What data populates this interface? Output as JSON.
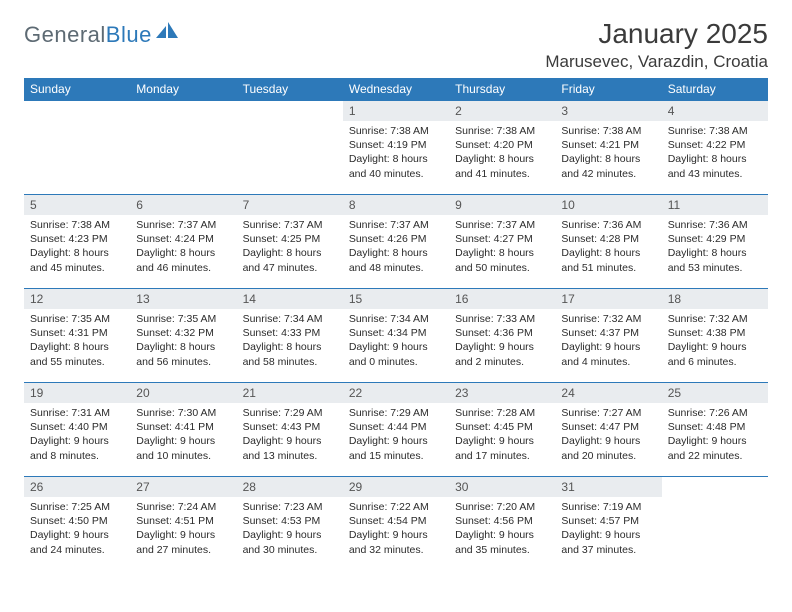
{
  "logo": {
    "word1": "General",
    "word2": "Blue"
  },
  "title": "January 2025",
  "location": "Marusevec, Varazdin, Croatia",
  "colors": {
    "header_bg": "#2d79b9",
    "header_fg": "#ffffff",
    "daynum_bg": "#e9ecef",
    "page_bg": "#ffffff",
    "text": "#2b2b2b",
    "logo_grey": "#5d6a73",
    "logo_blue": "#2d79b9"
  },
  "day_headers": [
    "Sunday",
    "Monday",
    "Tuesday",
    "Wednesday",
    "Thursday",
    "Friday",
    "Saturday"
  ],
  "weeks": [
    [
      null,
      null,
      null,
      {
        "n": "1",
        "sunrise": "7:38 AM",
        "sunset": "4:19 PM",
        "day_h": "8",
        "day_m": "40"
      },
      {
        "n": "2",
        "sunrise": "7:38 AM",
        "sunset": "4:20 PM",
        "day_h": "8",
        "day_m": "41"
      },
      {
        "n": "3",
        "sunrise": "7:38 AM",
        "sunset": "4:21 PM",
        "day_h": "8",
        "day_m": "42"
      },
      {
        "n": "4",
        "sunrise": "7:38 AM",
        "sunset": "4:22 PM",
        "day_h": "8",
        "day_m": "43"
      }
    ],
    [
      {
        "n": "5",
        "sunrise": "7:38 AM",
        "sunset": "4:23 PM",
        "day_h": "8",
        "day_m": "45"
      },
      {
        "n": "6",
        "sunrise": "7:37 AM",
        "sunset": "4:24 PM",
        "day_h": "8",
        "day_m": "46"
      },
      {
        "n": "7",
        "sunrise": "7:37 AM",
        "sunset": "4:25 PM",
        "day_h": "8",
        "day_m": "47"
      },
      {
        "n": "8",
        "sunrise": "7:37 AM",
        "sunset": "4:26 PM",
        "day_h": "8",
        "day_m": "48"
      },
      {
        "n": "9",
        "sunrise": "7:37 AM",
        "sunset": "4:27 PM",
        "day_h": "8",
        "day_m": "50"
      },
      {
        "n": "10",
        "sunrise": "7:36 AM",
        "sunset": "4:28 PM",
        "day_h": "8",
        "day_m": "51"
      },
      {
        "n": "11",
        "sunrise": "7:36 AM",
        "sunset": "4:29 PM",
        "day_h": "8",
        "day_m": "53"
      }
    ],
    [
      {
        "n": "12",
        "sunrise": "7:35 AM",
        "sunset": "4:31 PM",
        "day_h": "8",
        "day_m": "55"
      },
      {
        "n": "13",
        "sunrise": "7:35 AM",
        "sunset": "4:32 PM",
        "day_h": "8",
        "day_m": "56"
      },
      {
        "n": "14",
        "sunrise": "7:34 AM",
        "sunset": "4:33 PM",
        "day_h": "8",
        "day_m": "58"
      },
      {
        "n": "15",
        "sunrise": "7:34 AM",
        "sunset": "4:34 PM",
        "day_h": "9",
        "day_m": "0"
      },
      {
        "n": "16",
        "sunrise": "7:33 AM",
        "sunset": "4:36 PM",
        "day_h": "9",
        "day_m": "2"
      },
      {
        "n": "17",
        "sunrise": "7:32 AM",
        "sunset": "4:37 PM",
        "day_h": "9",
        "day_m": "4"
      },
      {
        "n": "18",
        "sunrise": "7:32 AM",
        "sunset": "4:38 PM",
        "day_h": "9",
        "day_m": "6"
      }
    ],
    [
      {
        "n": "19",
        "sunrise": "7:31 AM",
        "sunset": "4:40 PM",
        "day_h": "9",
        "day_m": "8"
      },
      {
        "n": "20",
        "sunrise": "7:30 AM",
        "sunset": "4:41 PM",
        "day_h": "9",
        "day_m": "10"
      },
      {
        "n": "21",
        "sunrise": "7:29 AM",
        "sunset": "4:43 PM",
        "day_h": "9",
        "day_m": "13"
      },
      {
        "n": "22",
        "sunrise": "7:29 AM",
        "sunset": "4:44 PM",
        "day_h": "9",
        "day_m": "15"
      },
      {
        "n": "23",
        "sunrise": "7:28 AM",
        "sunset": "4:45 PM",
        "day_h": "9",
        "day_m": "17"
      },
      {
        "n": "24",
        "sunrise": "7:27 AM",
        "sunset": "4:47 PM",
        "day_h": "9",
        "day_m": "20"
      },
      {
        "n": "25",
        "sunrise": "7:26 AM",
        "sunset": "4:48 PM",
        "day_h": "9",
        "day_m": "22"
      }
    ],
    [
      {
        "n": "26",
        "sunrise": "7:25 AM",
        "sunset": "4:50 PM",
        "day_h": "9",
        "day_m": "24"
      },
      {
        "n": "27",
        "sunrise": "7:24 AM",
        "sunset": "4:51 PM",
        "day_h": "9",
        "day_m": "27"
      },
      {
        "n": "28",
        "sunrise": "7:23 AM",
        "sunset": "4:53 PM",
        "day_h": "9",
        "day_m": "30"
      },
      {
        "n": "29",
        "sunrise": "7:22 AM",
        "sunset": "4:54 PM",
        "day_h": "9",
        "day_m": "32"
      },
      {
        "n": "30",
        "sunrise": "7:20 AM",
        "sunset": "4:56 PM",
        "day_h": "9",
        "day_m": "35"
      },
      {
        "n": "31",
        "sunrise": "7:19 AM",
        "sunset": "4:57 PM",
        "day_h": "9",
        "day_m": "37"
      },
      null
    ]
  ],
  "labels": {
    "sunrise": "Sunrise:",
    "sunset": "Sunset:",
    "daylight": "Daylight:",
    "hours": "hours",
    "and": "and",
    "minutes": "minutes."
  }
}
